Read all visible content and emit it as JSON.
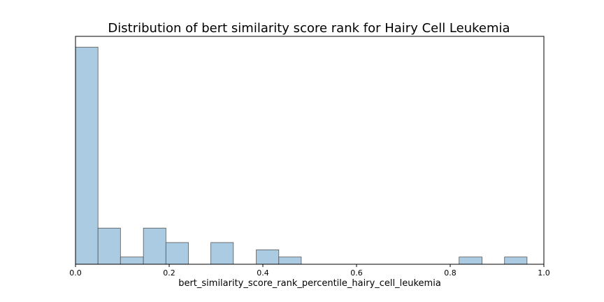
{
  "chart_data": {
    "type": "bar",
    "title": "Distribution of bert similarity score rank for Hairy Cell Leukemia",
    "xlabel": "bert_similarity_score_rank_percentile_hairy_cell_leukemia",
    "ylabel": "",
    "xlim": [
      0.0,
      1.0
    ],
    "ylim": [
      0,
      31.5
    ],
    "grid": false,
    "bar_color": "#a6c8e0",
    "bins": [
      {
        "x0": 0.0,
        "x1": 0.048,
        "count": 30
      },
      {
        "x0": 0.048,
        "x1": 0.096,
        "count": 5
      },
      {
        "x0": 0.096,
        "x1": 0.145,
        "count": 1
      },
      {
        "x0": 0.145,
        "x1": 0.193,
        "count": 5
      },
      {
        "x0": 0.193,
        "x1": 0.241,
        "count": 3
      },
      {
        "x0": 0.241,
        "x1": 0.289,
        "count": 0
      },
      {
        "x0": 0.289,
        "x1": 0.337,
        "count": 3
      },
      {
        "x0": 0.337,
        "x1": 0.386,
        "count": 0
      },
      {
        "x0": 0.386,
        "x1": 0.434,
        "count": 2
      },
      {
        "x0": 0.434,
        "x1": 0.482,
        "count": 1
      },
      {
        "x0": 0.482,
        "x1": 0.53,
        "count": 0
      },
      {
        "x0": 0.53,
        "x1": 0.578,
        "count": 0
      },
      {
        "x0": 0.578,
        "x1": 0.627,
        "count": 0
      },
      {
        "x0": 0.627,
        "x1": 0.675,
        "count": 0
      },
      {
        "x0": 0.675,
        "x1": 0.723,
        "count": 0
      },
      {
        "x0": 0.723,
        "x1": 0.771,
        "count": 0
      },
      {
        "x0": 0.771,
        "x1": 0.819,
        "count": 0
      },
      {
        "x0": 0.819,
        "x1": 0.868,
        "count": 1
      },
      {
        "x0": 0.868,
        "x1": 0.916,
        "count": 0
      },
      {
        "x0": 0.916,
        "x1": 0.964,
        "count": 1
      }
    ],
    "x_ticks": [
      {
        "value": 0.0,
        "label": "0.0"
      },
      {
        "value": 0.2,
        "label": "0.2"
      },
      {
        "value": 0.4,
        "label": "0.4"
      },
      {
        "value": 0.6,
        "label": "0.6"
      },
      {
        "value": 0.8,
        "label": "0.8"
      },
      {
        "value": 1.0,
        "label": "1.0"
      }
    ]
  }
}
